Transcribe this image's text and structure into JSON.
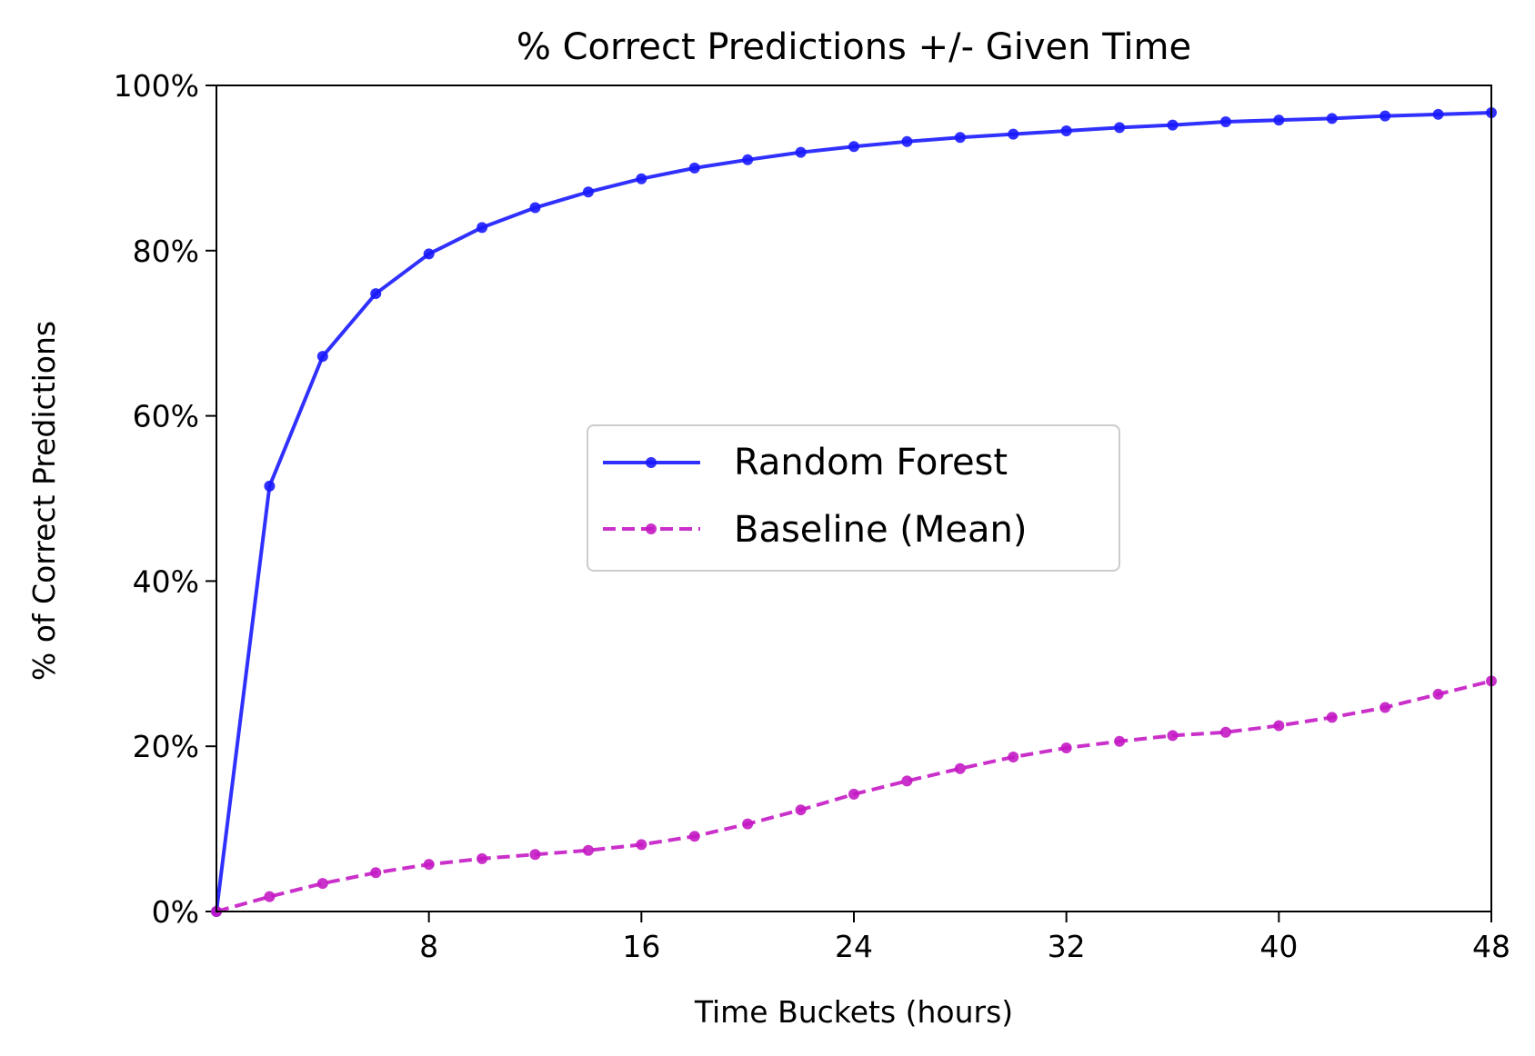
{
  "chart_data": {
    "type": "line",
    "title": "% Correct Predictions +/- Given Time",
    "xlabel": "Time Buckets (hours)",
    "ylabel": "% of Correct Predictions",
    "xlim": [
      0,
      48
    ],
    "ylim": [
      0,
      100
    ],
    "x_ticks": [
      8,
      16,
      24,
      32,
      40,
      48
    ],
    "x_tick_labels": [
      "8",
      "16",
      "24",
      "32",
      "40",
      "48"
    ],
    "y_ticks": [
      0,
      20,
      40,
      60,
      80,
      100
    ],
    "y_tick_labels": [
      "0%",
      "20%",
      "40%",
      "60%",
      "80%",
      "100%"
    ],
    "grid": false,
    "legend_position": "center",
    "x": [
      0,
      2,
      4,
      6,
      8,
      10,
      12,
      14,
      16,
      18,
      20,
      22,
      24,
      26,
      28,
      30,
      32,
      34,
      36,
      38,
      40,
      42,
      44,
      46,
      48
    ],
    "series": [
      {
        "name": "Random Forest",
        "color": "#1a1aff",
        "line_style": "solid",
        "marker": "circle",
        "values": [
          0,
          51.5,
          67.2,
          74.8,
          79.6,
          82.8,
          85.2,
          87.1,
          88.7,
          90.0,
          91.0,
          91.9,
          92.6,
          93.2,
          93.7,
          94.1,
          94.5,
          94.9,
          95.2,
          95.6,
          95.8,
          96.0,
          96.3,
          96.5,
          96.7
        ]
      },
      {
        "name": "Baseline (Mean)",
        "color": "#c41ac4",
        "line_style": "dashed",
        "marker": "circle",
        "values": [
          0,
          1.8,
          3.4,
          4.7,
          5.7,
          6.4,
          6.9,
          7.4,
          8.1,
          9.1,
          10.6,
          12.3,
          14.2,
          15.8,
          17.3,
          18.7,
          19.8,
          20.6,
          21.3,
          21.7,
          22.5,
          23.5,
          24.7,
          26.3,
          27.9
        ]
      }
    ]
  }
}
